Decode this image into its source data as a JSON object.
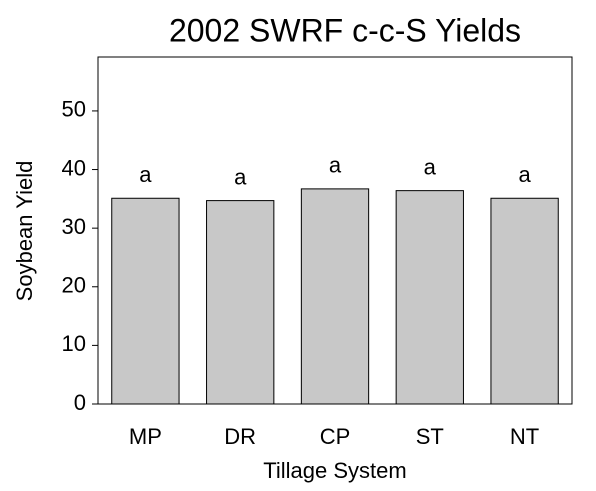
{
  "chart_data": {
    "type": "bar",
    "title": "2002 SWRF c-c-S Yields",
    "x_label": "Tillage System",
    "y_label": "Soybean Yield",
    "categories": [
      "MP",
      "DR",
      "CP",
      "ST",
      "NT"
    ],
    "values": [
      35.1,
      34.7,
      36.7,
      36.4,
      35.1
    ],
    "annotations": [
      "a",
      "a",
      "a",
      "a",
      "a"
    ],
    "color": "#c8c8c8",
    "ylim": [
      0,
      59.2
    ],
    "yticks": [
      0,
      10,
      20,
      30,
      40,
      50
    ],
    "grid": false
  }
}
